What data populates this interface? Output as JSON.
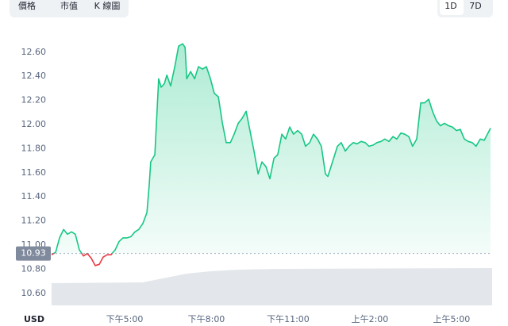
{
  "tabs": [
    "價格",
    "市值",
    "K 線圖"
  ],
  "ranges": [
    "1D",
    "7D"
  ],
  "currency": "USD",
  "chart_data": {
    "type": "line",
    "x": [
      14.32,
      14.47,
      14.61,
      14.76,
      14.9,
      15.05,
      15.19,
      15.34,
      15.49,
      15.63,
      15.78,
      15.92,
      16.07,
      16.21,
      16.36,
      16.5,
      16.65,
      16.8,
      16.94,
      17.09,
      17.23,
      17.38,
      17.52,
      17.67,
      17.82,
      17.9,
      17.96,
      18.11,
      18.25,
      18.34,
      18.46,
      18.55,
      18.69,
      18.84,
      18.98,
      19.13,
      19.22,
      19.28,
      19.42,
      19.57,
      19.71,
      19.86,
      20.0,
      20.15,
      20.29,
      20.44,
      20.59,
      20.73,
      20.88,
      21.02,
      21.17,
      21.31,
      21.46,
      21.6,
      21.75,
      21.9,
      22.04,
      22.19,
      22.33,
      22.48,
      22.62,
      22.77,
      22.91,
      23.06,
      23.2,
      23.35,
      23.5,
      23.64,
      23.79,
      23.93,
      24.08,
      24.22,
      24.37,
      24.46,
      24.6,
      24.81,
      24.95,
      25.1,
      25.24,
      25.39,
      25.53,
      25.68,
      25.83,
      25.97,
      26.12,
      26.26,
      26.41,
      26.55,
      26.7,
      26.85,
      26.99,
      27.14,
      27.28,
      27.43,
      27.57,
      27.72,
      27.87,
      28.01,
      28.16,
      28.3,
      28.45,
      28.59,
      28.74,
      28.89,
      29.03,
      29.18,
      29.32,
      29.47,
      29.61,
      29.76,
      29.9,
      30.05,
      30.2,
      30.43
    ],
    "series": [
      {
        "color": "#16c784",
        "below_color": "#ea3943",
        "values": [
          10.92,
          10.94,
          11.06,
          11.13,
          11.09,
          11.11,
          11.09,
          10.96,
          10.91,
          10.93,
          10.89,
          10.83,
          10.84,
          10.9,
          10.92,
          10.92,
          10.96,
          11.03,
          11.06,
          11.06,
          11.07,
          11.11,
          11.13,
          11.18,
          11.27,
          11.49,
          11.69,
          11.75,
          12.38,
          12.31,
          12.34,
          12.41,
          12.32,
          12.48,
          12.65,
          12.67,
          12.64,
          12.38,
          12.44,
          12.38,
          12.48,
          12.46,
          12.48,
          12.38,
          12.26,
          12.23,
          12.01,
          11.85,
          11.85,
          11.92,
          12.01,
          12.05,
          12.11,
          11.95,
          11.78,
          11.59,
          11.69,
          11.65,
          11.55,
          11.72,
          11.75,
          11.92,
          11.88,
          11.98,
          11.92,
          11.95,
          11.92,
          11.82,
          11.85,
          11.92,
          11.88,
          11.82,
          11.59,
          11.57,
          11.67,
          11.82,
          11.85,
          11.78,
          11.82,
          11.85,
          11.84,
          11.86,
          11.85,
          11.82,
          11.83,
          11.85,
          11.86,
          11.88,
          11.86,
          11.9,
          11.88,
          11.93,
          11.92,
          11.9,
          11.82,
          11.88,
          12.18,
          12.18,
          12.21,
          12.11,
          12.03,
          11.99,
          12.01,
          11.99,
          11.98,
          11.95,
          11.96,
          11.88,
          11.86,
          11.85,
          11.82,
          11.88,
          11.87,
          11.97
        ]
      }
    ],
    "reference_price": 10.93,
    "xlim": [
      14.32,
      30.43
    ],
    "xticks": [
      {
        "value": 17,
        "label": "下午5:00"
      },
      {
        "value": 20,
        "label": "下午8:00"
      },
      {
        "value": 23,
        "label": "下午11:00"
      },
      {
        "value": 26,
        "label": "上午2:00"
      },
      {
        "value": 29,
        "label": "上午5:00"
      }
    ],
    "ylim": [
      10.5,
      12.77
    ],
    "yticks": [
      {
        "value": 10.6,
        "label": "10.60"
      },
      {
        "value": 10.8,
        "label": "10.80"
      },
      {
        "value": 11,
        "label": "11.00"
      },
      {
        "value": 11.2,
        "label": "11.20"
      },
      {
        "value": 11.4,
        "label": "11.40"
      },
      {
        "value": 11.6,
        "label": "11.60"
      },
      {
        "value": 11.8,
        "label": "11.80"
      },
      {
        "value": 12,
        "label": "12.00"
      },
      {
        "value": 12.2,
        "label": "12.20"
      },
      {
        "value": 12.4,
        "label": "12.40"
      },
      {
        "value": 12.6,
        "label": "12.60"
      }
    ]
  }
}
